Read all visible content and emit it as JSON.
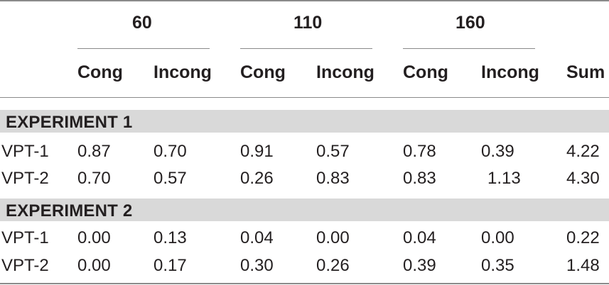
{
  "header": {
    "groups": [
      "60",
      "110",
      "160"
    ],
    "columns": [
      "Cong",
      "Incong",
      "Cong",
      "Incong",
      "Cong",
      "Incong",
      "Sum"
    ]
  },
  "sections": [
    {
      "title": "EXPERIMENT 1",
      "rows": [
        {
          "label": "VPT-1",
          "values": [
            "0.87",
            "0.70",
            "0.91",
            "0.57",
            "0.78",
            "0.39",
            "4.22"
          ]
        },
        {
          "label": "VPT-2",
          "values": [
            "0.70",
            "0.57",
            "0.26",
            "0.83",
            "0.83",
            "1.13",
            "4.30"
          ]
        }
      ]
    },
    {
      "title": "EXPERIMENT 2",
      "rows": [
        {
          "label": "VPT-1",
          "values": [
            "0.00",
            "0.13",
            "0.04",
            "0.00",
            "0.04",
            "0.00",
            "0.22"
          ]
        },
        {
          "label": "VPT-2",
          "values": [
            "0.00",
            "0.17",
            "0.30",
            "0.26",
            "0.39",
            "0.35",
            "1.48"
          ]
        }
      ]
    }
  ]
}
